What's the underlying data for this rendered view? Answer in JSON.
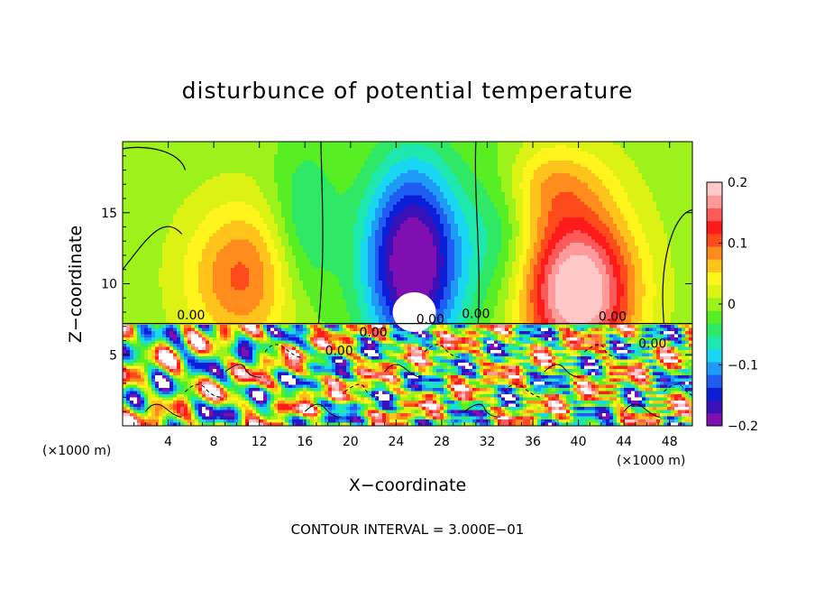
{
  "chart_data": {
    "type": "heatmap",
    "title": "disturbunce of potential temperature",
    "xlabel": "X−coordinate",
    "ylabel": "Z−coordinate",
    "x_unit": "(×1000 m)",
    "y_unit": "(×1000 m)",
    "footer": "CONTOUR INTERVAL = 3.000E−01",
    "xlim": [
      0,
      50
    ],
    "ylim": [
      0,
      20
    ],
    "x_ticks": [
      4,
      8,
      12,
      16,
      20,
      24,
      28,
      32,
      36,
      40,
      44,
      48
    ],
    "y_ticks": [
      5,
      10,
      15
    ],
    "colorbar": {
      "range": [
        -0.2,
        0.2
      ],
      "tick_values": [
        0.2,
        0.1,
        0,
        -0.1,
        -0.2
      ],
      "tick_labels": [
        "0.2",
        "0.1",
        "0",
        "−0.1",
        "−0.2"
      ],
      "colors": [
        "#7f0fb0",
        "#3a10b8",
        "#0d1fd6",
        "#1f5cf2",
        "#1d9bf6",
        "#19d6f2",
        "#1ee8b0",
        "#2ee866",
        "#57ee24",
        "#9cf21a",
        "#dcf214",
        "#fff41c",
        "#ffc41c",
        "#ff8c1c",
        "#ff4a1c",
        "#ff1a1c",
        "#ff5a5a",
        "#ff9a9a",
        "#ffc8c8"
      ]
    },
    "contour_labels": [
      "0.00",
      "0.00",
      "0.00",
      "0.00",
      "0.00",
      "0.00",
      "0.00"
    ],
    "field": {
      "description_upper": "smooth field above ~7.2 km with positive lobes near x=10 and x=40 and a negative lobe near x=25",
      "features": [
        {
          "x": 25,
          "z": 12,
          "value": -0.2
        },
        {
          "x": 10,
          "z": 11,
          "value": 0.1
        },
        {
          "x": 40,
          "z": 10,
          "value": 0.2
        }
      ],
      "turbulent_layer_top": 7.2
    }
  }
}
